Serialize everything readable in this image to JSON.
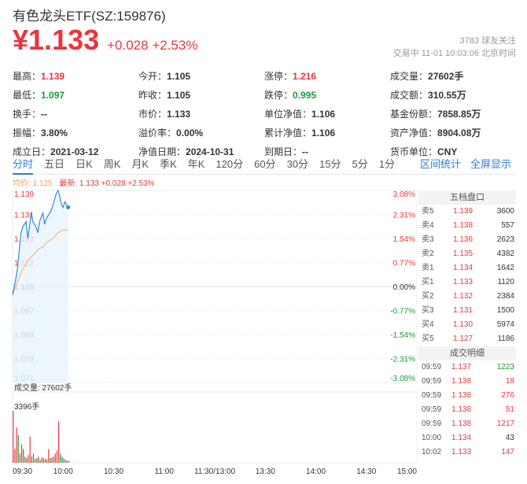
{
  "header": {
    "title": "有色龙头ETF(SZ:159876)",
    "price": "¥1.133",
    "change": "+0.028",
    "change_pct": "+2.53%",
    "followers": "3783 球友关注",
    "status": "交易中 11-01 10:03:06 北京时间"
  },
  "stats": [
    [
      {
        "label": "最高：",
        "value": "1.139",
        "color": "red"
      },
      {
        "label": "今开：",
        "value": "1.105"
      },
      {
        "label": "涨停：",
        "value": "1.216",
        "color": "red"
      },
      {
        "label": "成交量：",
        "value": "27602手"
      }
    ],
    [
      {
        "label": "最低：",
        "value": "1.097",
        "color": "green"
      },
      {
        "label": "昨收：",
        "value": "1.105"
      },
      {
        "label": "跌停：",
        "value": "0.995",
        "color": "green"
      },
      {
        "label": "成交额：",
        "value": "310.55万"
      }
    ],
    [
      {
        "label": "换手：",
        "value": "--"
      },
      {
        "label": "市价：",
        "value": "1.133"
      },
      {
        "label": "单位净值：",
        "value": "1.106"
      },
      {
        "label": "基金份额：",
        "value": "7858.85万"
      }
    ],
    [
      {
        "label": "振幅：",
        "value": "3.80%"
      },
      {
        "label": "溢价率：",
        "value": "0.00%"
      },
      {
        "label": "累计净值：",
        "value": "1.106"
      },
      {
        "label": "资产净值：",
        "value": "8904.08万"
      }
    ],
    [
      {
        "label": "成立日：",
        "value": "2021-03-12"
      },
      {
        "label": "净值日期：",
        "value": "2024-10-31"
      },
      {
        "label": "到期日：",
        "value": "--"
      },
      {
        "label": "货币单位：",
        "value": "CNY"
      }
    ]
  ],
  "tabs": [
    "分时",
    "五日",
    "日K",
    "周K",
    "月K",
    "季K",
    "年K",
    "120分",
    "60分",
    "30分",
    "15分",
    "5分",
    "1分"
  ],
  "tabs_right": [
    "区间统计",
    "全屏显示"
  ],
  "legend": {
    "avg": "均价: 1.125",
    "latest": "最新: 1.133 +0.028 +2.53%"
  },
  "volume_label": "成交量: 27602手",
  "volume_max_label": "3396手",
  "order_book": {
    "title": "五档盘口",
    "rows": [
      {
        "side": "卖5",
        "price": "1.139",
        "vol": "3600"
      },
      {
        "side": "卖4",
        "price": "1.138",
        "vol": "557"
      },
      {
        "side": "卖3",
        "price": "1.136",
        "vol": "2623"
      },
      {
        "side": "卖2",
        "price": "1.135",
        "vol": "4382"
      },
      {
        "side": "卖1",
        "price": "1.134",
        "vol": "1642"
      },
      {
        "side": "买1",
        "price": "1.133",
        "vol": "1120"
      },
      {
        "side": "买2",
        "price": "1.132",
        "vol": "2384"
      },
      {
        "side": "买3",
        "price": "1.131",
        "vol": "1500"
      },
      {
        "side": "买4",
        "price": "1.130",
        "vol": "5974"
      },
      {
        "side": "买5",
        "price": "1.127",
        "vol": "1186"
      }
    ]
  },
  "trades": {
    "title": "成交明细",
    "rows": [
      {
        "time": "09:59",
        "price": "1.137",
        "vol": "1223",
        "color": "green"
      },
      {
        "time": "09:59",
        "price": "1.138",
        "vol": "18",
        "color": "red"
      },
      {
        "time": "09:59",
        "price": "1.138",
        "vol": "276",
        "color": "red"
      },
      {
        "time": "09:59",
        "price": "1.138",
        "vol": "51",
        "color": "red"
      },
      {
        "time": "09:59",
        "price": "1.138",
        "vol": "1217",
        "color": "red"
      },
      {
        "time": "10:00",
        "price": "1.134",
        "vol": "43",
        "color": "default"
      },
      {
        "time": "10:02",
        "price": "1.133",
        "vol": "147",
        "color": "red"
      }
    ]
  },
  "colors": {
    "up": "#e8373c",
    "down": "#1a9c3a",
    "price_line": "#2f8be0",
    "avg_line": "#f0b070",
    "accent": "#2f7bd8"
  },
  "chart_data": {
    "type": "line",
    "x_ticks": [
      "09:30",
      "10:00",
      "10:30",
      "11:00",
      "11:30/13:00",
      "13:30",
      "14:00",
      "14:30",
      "15:00"
    ],
    "y_ticks": [
      "1.139",
      "1.131",
      "1.122",
      "1.113",
      "1.105",
      "1.097",
      "1.088",
      "1.079",
      "1.071"
    ],
    "pct_ticks": [
      "3.08%",
      "2.31%",
      "1.54%",
      "0.77%",
      "0.00%",
      "-0.77%",
      "-1.54%",
      "-2.31%",
      "-3.08%"
    ],
    "y_range": [
      1.071,
      1.139
    ],
    "base": 1.105,
    "minutes_total": 240,
    "series": [
      {
        "name": "最新",
        "minutes": [
          0,
          2,
          3,
          4,
          5,
          6,
          8,
          9,
          10,
          11,
          12,
          14,
          15,
          16,
          18,
          19,
          20,
          22,
          23,
          24,
          25,
          26,
          27,
          28,
          29,
          30,
          31,
          32,
          33
        ],
        "values": [
          1.102,
          1.108,
          1.112,
          1.118,
          1.124,
          1.126,
          1.128,
          1.122,
          1.126,
          1.131,
          1.128,
          1.126,
          1.124,
          1.128,
          1.131,
          1.127,
          1.129,
          1.131,
          1.132,
          1.134,
          1.136,
          1.138,
          1.139,
          1.137,
          1.134,
          1.133,
          1.135,
          1.134,
          1.133
        ]
      },
      {
        "name": "均价",
        "minutes": [
          0,
          3,
          6,
          9,
          12,
          15,
          18,
          21,
          24,
          27,
          30,
          33
        ],
        "values": [
          1.102,
          1.107,
          1.111,
          1.114,
          1.116,
          1.118,
          1.119,
          1.121,
          1.122,
          1.124,
          1.125,
          1.125
        ]
      }
    ],
    "volume": {
      "max": 3396,
      "minutes": [
        0,
        1,
        2,
        3,
        4,
        5,
        6,
        7,
        8,
        9,
        10,
        11,
        12,
        13,
        14,
        15,
        16,
        17,
        18,
        19,
        20,
        21,
        22,
        23,
        24,
        25,
        26,
        27,
        28,
        29,
        30,
        31,
        32,
        33
      ],
      "values": [
        3396,
        900,
        2300,
        1800,
        600,
        1200,
        900,
        400,
        300,
        500,
        1700,
        400,
        600,
        250,
        300,
        400,
        200,
        350,
        300,
        250,
        200,
        900,
        300,
        350,
        400,
        600,
        800,
        2700,
        600,
        400,
        300,
        200,
        150,
        120
      ],
      "colors": [
        "r",
        "r",
        "r",
        "g",
        "r",
        "r",
        "g",
        "r",
        "g",
        "r",
        "r",
        "g",
        "r",
        "r",
        "g",
        "r",
        "g",
        "r",
        "r",
        "g",
        "r",
        "r",
        "g",
        "r",
        "r",
        "r",
        "r",
        "r",
        "g",
        "g",
        "r",
        "g",
        "r",
        "g"
      ]
    }
  }
}
